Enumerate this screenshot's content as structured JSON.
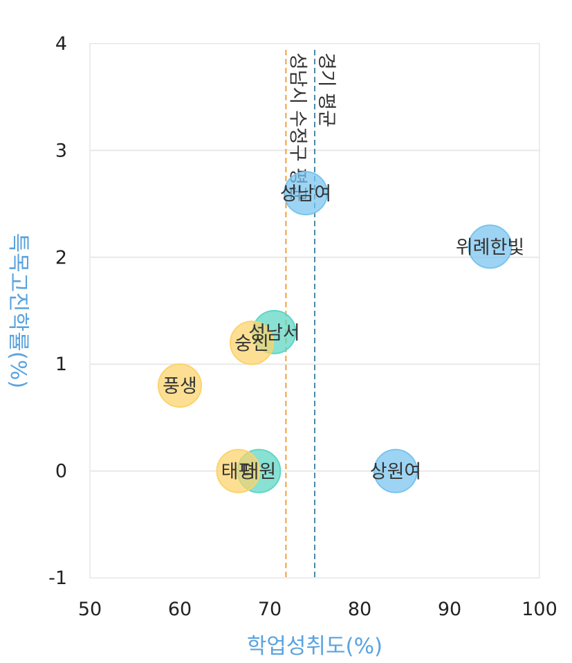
{
  "chart_data": {
    "type": "scatter",
    "title": "",
    "xlabel": "학업성취도(%)",
    "ylabel": "특목고진학률(%)",
    "xlim": [
      50,
      100
    ],
    "ylim": [
      -1,
      4
    ],
    "x_ticks": [
      "50",
      "60",
      "70",
      "80",
      "90",
      "100"
    ],
    "y_ticks": [
      "-1",
      "0",
      "1",
      "2",
      "3",
      "4"
    ],
    "grid": "horizontal",
    "points": [
      {
        "label": "성남서",
        "x": 70.5,
        "y": 1.3,
        "color": "#5cd6c4"
      },
      {
        "label": "대원",
        "x": 68.8,
        "y": 0.0,
        "color": "#5cd6c4"
      },
      {
        "label": "숭신",
        "x": 68.0,
        "y": 1.2,
        "color": "#fcd36b"
      },
      {
        "label": "풍생",
        "x": 60.0,
        "y": 0.8,
        "color": "#fcd36b"
      },
      {
        "label": "태평",
        "x": 66.5,
        "y": 0.0,
        "color": "#fcd36b"
      },
      {
        "label": "성남여",
        "x": 74.0,
        "y": 2.6,
        "color": "#78c4ef"
      },
      {
        "label": "위례한빛",
        "x": 94.5,
        "y": 2.1,
        "color": "#78c4ef"
      },
      {
        "label": "상원여",
        "x": 84.0,
        "y": 0.0,
        "color": "#78c4ef"
      }
    ],
    "reference_lines": [
      {
        "label": "경기 평균",
        "x": 75.0,
        "color": "#4a88a8"
      },
      {
        "label": "성남시 수정구 평균",
        "x": 71.8,
        "color": "#f0a040"
      }
    ]
  }
}
